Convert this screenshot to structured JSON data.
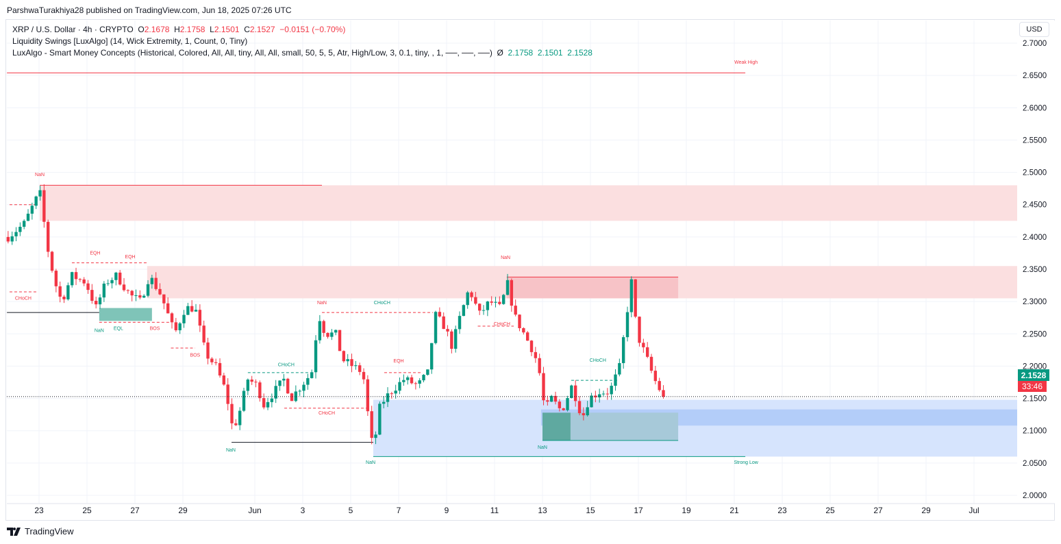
{
  "header": {
    "published": "ParshwaTurakhiya28 published on TradingView.com, Jun 18, 2025 07:26 UTC"
  },
  "legend": {
    "symbol": "XRP / U.S. Dollar · 4h · CRYPTO",
    "o_label": "O",
    "o": "2.1678",
    "h_label": "H",
    "h": "2.1758",
    "l_label": "L",
    "l": "2.1501",
    "c_label": "C",
    "c": "2.1527",
    "change": "−0.0151 (−0.70%)",
    "ind1": "Liquidity Swings [LuxAlgo] (14, Wick Extremity, 1, Count, 0, Tiny)",
    "ind2": "LuxAlgo - Smart Money Concepts (Historical, Colored, All, All, tiny, All, All, small, 50, 5, 5, Atr, High/Low, 3, 0.1, tiny, , 1, ──, ──, ──)",
    "ind2_sym": "Ø",
    "ind2_v1": "2.1758",
    "ind2_v2": "2.1501",
    "ind2_v3": "2.1528"
  },
  "currency": "USD",
  "footer": {
    "brand": "TradingView"
  },
  "colors": {
    "up": "#089981",
    "down": "#f23645",
    "blue_zone": "#bbd3fb",
    "red_zone": "#fbd9db"
  },
  "chart_data": {
    "type": "candlestick",
    "time_unit": "days since May 23",
    "ylim": [
      1.99,
      2.7
    ],
    "y_ticks": [
      "2.7000",
      "2.6500",
      "2.6000",
      "2.5500",
      "2.5000",
      "2.4500",
      "2.4000",
      "2.3500",
      "2.3000",
      "2.2500",
      "2.2000",
      "2.1500",
      "2.1000",
      "2.0500",
      "2.0000"
    ],
    "x_ticks": [
      {
        "t": 0,
        "label": "23"
      },
      {
        "t": 2,
        "label": "25"
      },
      {
        "t": 4,
        "label": "27"
      },
      {
        "t": 6,
        "label": "29"
      },
      {
        "t": 9,
        "label": "Jun"
      },
      {
        "t": 11,
        "label": "3"
      },
      {
        "t": 13,
        "label": "5"
      },
      {
        "t": 15,
        "label": "7"
      },
      {
        "t": 17,
        "label": "9"
      },
      {
        "t": 19,
        "label": "11"
      },
      {
        "t": 21,
        "label": "13"
      },
      {
        "t": 23,
        "label": "15"
      },
      {
        "t": 25,
        "label": "17"
      },
      {
        "t": 27,
        "label": "19"
      },
      {
        "t": 29,
        "label": "21"
      },
      {
        "t": 31,
        "label": "23"
      },
      {
        "t": 33,
        "label": "25"
      },
      {
        "t": 35,
        "label": "27"
      },
      {
        "t": 37,
        "label": "29"
      },
      {
        "t": 39,
        "label": "Jul"
      }
    ],
    "price_path": [
      [
        -1.29,
        2.4
      ],
      [
        -0.63,
        2.42
      ],
      [
        0.03,
        2.47
      ],
      [
        0.37,
        2.38
      ],
      [
        0.66,
        2.33
      ],
      [
        0.94,
        2.3
      ],
      [
        1.37,
        2.34
      ],
      [
        1.94,
        2.33
      ],
      [
        2.37,
        2.29
      ],
      [
        2.8,
        2.33
      ],
      [
        3.23,
        2.34
      ],
      [
        3.8,
        2.31
      ],
      [
        4.23,
        2.3
      ],
      [
        4.6,
        2.34
      ],
      [
        5.09,
        2.31
      ],
      [
        5.66,
        2.25
      ],
      [
        6.09,
        2.29
      ],
      [
        6.51,
        2.29
      ],
      [
        6.94,
        2.22
      ],
      [
        7.37,
        2.2
      ],
      [
        7.8,
        2.16
      ],
      [
        8.09,
        2.1
      ],
      [
        8.37,
        2.13
      ],
      [
        8.71,
        2.18
      ],
      [
        9.09,
        2.17
      ],
      [
        9.37,
        2.14
      ],
      [
        9.8,
        2.16
      ],
      [
        10.23,
        2.18
      ],
      [
        10.51,
        2.15
      ],
      [
        10.94,
        2.17
      ],
      [
        11.37,
        2.19
      ],
      [
        11.66,
        2.28
      ],
      [
        11.94,
        2.25
      ],
      [
        12.37,
        2.25
      ],
      [
        12.66,
        2.21
      ],
      [
        13.09,
        2.2
      ],
      [
        13.51,
        2.19
      ],
      [
        13.8,
        2.1
      ],
      [
        13.94,
        2.07
      ],
      [
        14.23,
        2.14
      ],
      [
        14.66,
        2.16
      ],
      [
        15.23,
        2.18
      ],
      [
        15.8,
        2.17
      ],
      [
        16.23,
        2.19
      ],
      [
        16.51,
        2.28
      ],
      [
        16.94,
        2.26
      ],
      [
        17.23,
        2.23
      ],
      [
        17.51,
        2.27
      ],
      [
        17.94,
        2.32
      ],
      [
        18.37,
        2.28
      ],
      [
        18.8,
        2.3
      ],
      [
        19.23,
        2.29
      ],
      [
        19.57,
        2.33
      ],
      [
        19.8,
        2.28
      ],
      [
        20.23,
        2.25
      ],
      [
        20.66,
        2.22
      ],
      [
        20.94,
        2.18
      ],
      [
        21.09,
        2.13
      ],
      [
        21.37,
        2.15
      ],
      [
        21.8,
        2.13
      ],
      [
        22.23,
        2.17
      ],
      [
        22.66,
        2.12
      ],
      [
        22.94,
        2.15
      ],
      [
        23.37,
        2.16
      ],
      [
        23.8,
        2.16
      ],
      [
        24.23,
        2.2
      ],
      [
        24.51,
        2.28
      ],
      [
        24.71,
        2.33
      ],
      [
        24.94,
        2.25
      ],
      [
        25.37,
        2.21
      ],
      [
        25.66,
        2.18
      ],
      [
        25.94,
        2.16
      ],
      [
        26.14,
        2.1527
      ]
    ],
    "last_price": "2.1528",
    "countdown": "33:46",
    "zones": [
      {
        "t": [
          0.03,
          40.8
        ],
        "p": [
          2.425,
          2.48
        ],
        "color": "#fbdfe0"
      },
      {
        "t": [
          4.51,
          40.8
        ],
        "p": [
          2.305,
          2.355
        ],
        "color": "#fbdfe0"
      },
      {
        "t": [
          19.51,
          26.66
        ],
        "p": [
          2.305,
          2.338
        ],
        "color": "#f7c3c7"
      },
      {
        "t": [
          13.94,
          40.8
        ],
        "p": [
          2.06,
          2.148
        ],
        "color": "#d6e4fd"
      },
      {
        "t": [
          20.94,
          40.8
        ],
        "p": [
          2.108,
          2.133
        ],
        "color": "#b3cdf9"
      },
      {
        "t": [
          21.0,
          22.17
        ],
        "p": [
          2.085,
          2.128
        ],
        "color": "#5fa9a0"
      },
      {
        "t": [
          22.17,
          26.66
        ],
        "p": [
          2.085,
          2.128
        ],
        "color": "#a7c9d9"
      },
      {
        "t": [
          2.51,
          4.71
        ],
        "p": [
          2.27,
          2.29
        ],
        "color": "#7fc4b8"
      }
    ],
    "lines": [
      {
        "t": [
          -1.34,
          29.46
        ],
        "p": 2.654,
        "color": "#f23645",
        "dash": false
      },
      {
        "t": [
          0.03,
          11.8
        ],
        "p": 2.48,
        "color": "#f23645",
        "dash": false
      },
      {
        "t": [
          19.51,
          26.66
        ],
        "p": 2.338,
        "color": "#f23645",
        "dash": false
      },
      {
        "t": [
          -1.34,
          2.51
        ],
        "p": 2.283,
        "color": "#131722",
        "dash": false
      },
      {
        "t": [
          8.03,
          13.94
        ],
        "p": 2.082,
        "color": "#131722",
        "dash": false
      },
      {
        "t": [
          13.94,
          29.46
        ],
        "p": 2.06,
        "color": "#089981",
        "dash": false
      },
      {
        "t": [
          21.0,
          26.66
        ],
        "p": 2.085,
        "color": "#089981",
        "dash": false
      },
      {
        "t": [
          -1.23,
          -0.06
        ],
        "p": 2.45,
        "color": "#f23645",
        "dash": true
      },
      {
        "t": [
          -1.23,
          -0.1
        ],
        "p": 2.315,
        "color": "#f23645",
        "dash": true
      },
      {
        "t": [
          11.8,
          16.43
        ],
        "p": 2.283,
        "color": "#f23645",
        "dash": true
      },
      {
        "t": [
          2.51,
          5.5
        ],
        "p": 2.268,
        "color": "#f23645",
        "dash": true
      },
      {
        "t": [
          5.5,
          6.51
        ],
        "p": 2.228,
        "color": "#f23645",
        "dash": true
      },
      {
        "t": [
          10.23,
          13.8
        ],
        "p": 2.135,
        "color": "#f23645",
        "dash": true
      },
      {
        "t": [
          8.71,
          11.3
        ],
        "p": 2.19,
        "color": "#089981",
        "dash": true
      },
      {
        "t": [
          14.4,
          16.0
        ],
        "p": 2.19,
        "color": "#f23645",
        "dash": true
      },
      {
        "t": [
          18.3,
          19.8
        ],
        "p": 2.262,
        "color": "#f23645",
        "dash": true
      },
      {
        "t": [
          22.2,
          24.2
        ],
        "p": 2.178,
        "color": "#089981",
        "dash": true
      },
      {
        "t": [
          1.37,
          4.51
        ],
        "p": 2.36,
        "color": "#f23645",
        "dash": true
      }
    ],
    "labels": [
      {
        "text": "NaN",
        "t": 0.03,
        "p": 2.494,
        "color": "#f23645"
      },
      {
        "text": "EQH",
        "t": 2.34,
        "p": 2.373,
        "color": "#f23645"
      },
      {
        "text": "EQH",
        "t": 3.8,
        "p": 2.367,
        "color": "#f23645"
      },
      {
        "text": "CHoCH",
        "t": -0.66,
        "p": 2.303,
        "color": "#f23645"
      },
      {
        "text": "NaN",
        "t": 2.51,
        "p": 2.253,
        "color": "#089981"
      },
      {
        "text": "EQL",
        "t": 3.31,
        "p": 2.256,
        "color": "#089981"
      },
      {
        "text": "BOS",
        "t": 4.83,
        "p": 2.256,
        "color": "#f23645"
      },
      {
        "text": "BOS",
        "t": 6.51,
        "p": 2.215,
        "color": "#f23645"
      },
      {
        "text": "NaN",
        "t": 11.8,
        "p": 2.296,
        "color": "#f23645"
      },
      {
        "text": "CHoCH",
        "t": 14.31,
        "p": 2.296,
        "color": "#089981"
      },
      {
        "text": "CHoCH",
        "t": 10.31,
        "p": 2.2,
        "color": "#089981"
      },
      {
        "text": "EQH",
        "t": 15.0,
        "p": 2.206,
        "color": "#f23645"
      },
      {
        "text": "CHoCH",
        "t": 12.0,
        "p": 2.125,
        "color": "#f23645"
      },
      {
        "text": "NaN",
        "t": 8.0,
        "p": 2.068,
        "color": "#089981"
      },
      {
        "text": "NaN",
        "t": 13.83,
        "p": 2.049,
        "color": "#089981"
      },
      {
        "text": "NaN",
        "t": 19.46,
        "p": 2.366,
        "color": "#f23645"
      },
      {
        "text": "CHoCH",
        "t": 19.31,
        "p": 2.263,
        "color": "#f23645"
      },
      {
        "text": "CHoCH",
        "t": 23.31,
        "p": 2.207,
        "color": "#089981"
      },
      {
        "text": "NaN",
        "t": 21.0,
        "p": 2.072,
        "color": "#089981"
      },
      {
        "text": "Weak High",
        "t": 29.49,
        "p": 2.668,
        "color": "#f23645"
      },
      {
        "text": "Strong Low",
        "t": 29.49,
        "p": 2.049,
        "color": "#089981"
      }
    ]
  }
}
